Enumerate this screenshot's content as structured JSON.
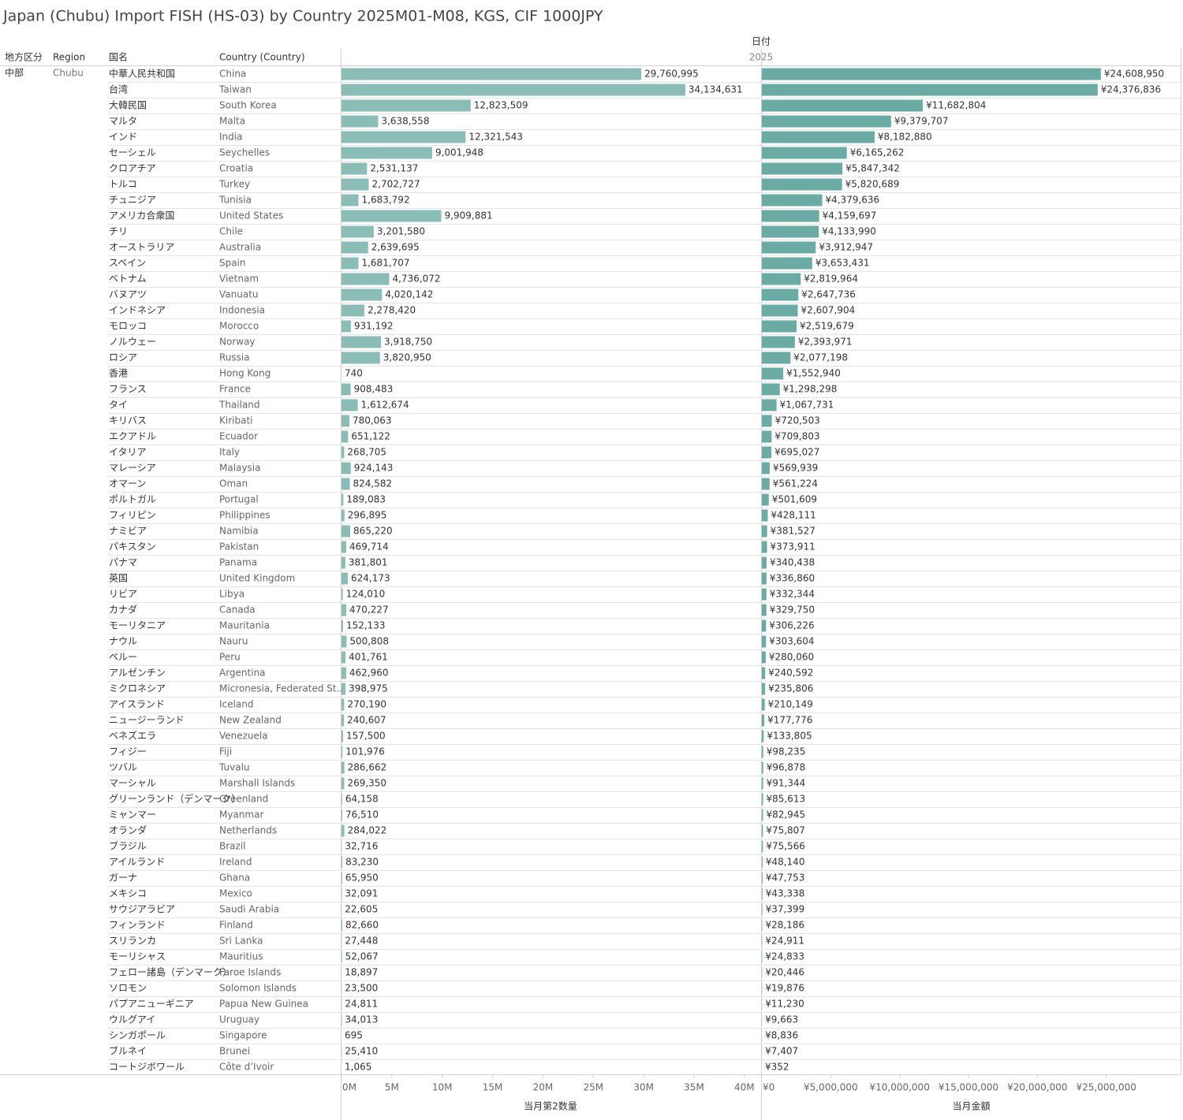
{
  "chart_data": {
    "type": "bar",
    "title": "Japan (Chubu) Import FISH (HS-03) by Country 2025M01-M08, KGS, CIF 1000JPY",
    "headers": {
      "area": "地方区分",
      "region": "Region",
      "name_jp": "国名",
      "country": "Country (Country)",
      "date": "日付",
      "year": "2025"
    },
    "area": "中部",
    "region": "Chubu",
    "categories": [
      "中華人民共和国",
      "台湾",
      "大韓民国",
      "マルタ",
      "インド",
      "セーシェル",
      "クロアチア",
      "トルコ",
      "チュニジア",
      "アメリカ合衆国",
      "チリ",
      "オーストラリア",
      "スペイン",
      "ベトナム",
      "バヌアツ",
      "インドネシア",
      "モロッコ",
      "ノルウェー",
      "ロシア",
      "香港",
      "フランス",
      "タイ",
      "キリバス",
      "エクアドル",
      "イタリア",
      "マレーシア",
      "オマーン",
      "ポルトガル",
      "フィリピン",
      "ナミビア",
      "パキスタン",
      "パナマ",
      "英国",
      "リビア",
      "カナダ",
      "モーリタニア",
      "ナウル",
      "ペルー",
      "アルゼンチン",
      "ミクロネシア",
      "アイスランド",
      "ニュージーランド",
      "ベネズエラ",
      "フィジー",
      "ツバル",
      "マーシャル",
      "グリーンランド（デンマーク）",
      "ミャンマー",
      "オランダ",
      "ブラジル",
      "アイルランド",
      "ガーナ",
      "メキシコ",
      "サウジアラビア",
      "フィンランド",
      "スリランカ",
      "モーリシャス",
      "フェロー諸島（デンマーク）",
      "ソロモン",
      "パプアニューギニア",
      "ウルグアイ",
      "シンガポール",
      "ブルネイ",
      "コートジボワール"
    ],
    "countries": [
      "China",
      "Taiwan",
      "South Korea",
      "Malta",
      "India",
      "Seychelles",
      "Croatia",
      "Turkey",
      "Tunisia",
      "United States",
      "Chile",
      "Australia",
      "Spain",
      "Vietnam",
      "Vanuatu",
      "Indonesia",
      "Morocco",
      "Norway",
      "Russia",
      "Hong Kong",
      "France",
      "Thailand",
      "Kiribati",
      "Ecuador",
      "Italy",
      "Malaysia",
      "Oman",
      "Portugal",
      "Philippines",
      "Namibia",
      "Pakistan",
      "Panama",
      "United Kingdom",
      "Libya",
      "Canada",
      "Mauritania",
      "Nauru",
      "Peru",
      "Argentina",
      "Micronesia, Federated St..",
      "Iceland",
      "New Zealand",
      "Venezuela",
      "Fiji",
      "Tuvalu",
      "Marshall Islands",
      "Greenland",
      "Myanmar",
      "Netherlands",
      "Brazil",
      "Ireland",
      "Ghana",
      "Mexico",
      "Saudi Arabia",
      "Finland",
      "Sri Lanka",
      "Mauritius",
      "Faroe Islands",
      "Solomon Islands",
      "Papua New Guinea",
      "Uruguay",
      "Singapore",
      "Brunei",
      "Côte d’Ivoir"
    ],
    "panels": [
      {
        "title": "当月第2数量",
        "color": "#89bdb5",
        "values": [
          29760995,
          34134631,
          12823509,
          3638558,
          12321543,
          9001948,
          2531137,
          2702727,
          1683792,
          9909881,
          3201580,
          2639695,
          1681707,
          4736072,
          4020142,
          2278420,
          931192,
          3918750,
          3820950,
          740,
          908483,
          1612674,
          780063,
          651122,
          268705,
          924143,
          824582,
          189083,
          296895,
          865220,
          469714,
          381801,
          624173,
          124010,
          470227,
          152133,
          500808,
          401761,
          462960,
          398975,
          270190,
          240607,
          157500,
          101976,
          286662,
          269350,
          64158,
          76510,
          284022,
          32716,
          83230,
          65950,
          32091,
          22605,
          82660,
          27448,
          52067,
          18897,
          23500,
          24811,
          34013,
          695,
          25410,
          1065
        ],
        "value_labels": [
          "29,760,995",
          "34,134,631",
          "12,823,509",
          "3,638,558",
          "12,321,543",
          "9,001,948",
          "2,531,137",
          "2,702,727",
          "1,683,792",
          "9,909,881",
          "3,201,580",
          "2,639,695",
          "1,681,707",
          "4,736,072",
          "4,020,142",
          "2,278,420",
          "931,192",
          "3,918,750",
          "3,820,950",
          "740",
          "908,483",
          "1,612,674",
          "780,063",
          "651,122",
          "268,705",
          "924,143",
          "824,582",
          "189,083",
          "296,895",
          "865,220",
          "469,714",
          "381,801",
          "624,173",
          "124,010",
          "470,227",
          "152,133",
          "500,808",
          "401,761",
          "462,960",
          "398,975",
          "270,190",
          "240,607",
          "157,500",
          "101,976",
          "286,662",
          "269,350",
          "64,158",
          "76,510",
          "284,022",
          "32,716",
          "83,230",
          "65,950",
          "32,091",
          "22,605",
          "82,660",
          "27,448",
          "52,067",
          "18,897",
          "23,500",
          "24,811",
          "34,013",
          "695",
          "25,410",
          "1,065"
        ],
        "xlim": [
          0,
          41500000
        ],
        "xticks": [
          {
            "value": 0,
            "label": "0M"
          },
          {
            "value": 5000000,
            "label": "5M"
          },
          {
            "value": 10000000,
            "label": "10M"
          },
          {
            "value": 15000000,
            "label": "15M"
          },
          {
            "value": 20000000,
            "label": "20M"
          },
          {
            "value": 25000000,
            "label": "25M"
          },
          {
            "value": 30000000,
            "label": "30M"
          },
          {
            "value": 35000000,
            "label": "35M"
          },
          {
            "value": 40000000,
            "label": "40M"
          }
        ]
      },
      {
        "title": "当月金額",
        "color": "#6aaba3",
        "values": [
          24608950,
          24376836,
          11682804,
          9379707,
          8182880,
          6165262,
          5847342,
          5820689,
          4379636,
          4159697,
          4133990,
          3912947,
          3653431,
          2819964,
          2647736,
          2607904,
          2519679,
          2393971,
          2077198,
          1552940,
          1298298,
          1067731,
          720503,
          709803,
          695027,
          569939,
          561224,
          501609,
          428111,
          381527,
          373911,
          340438,
          336860,
          332344,
          329750,
          306226,
          303604,
          280060,
          240592,
          235806,
          210149,
          177776,
          133805,
          98235,
          96878,
          91344,
          85613,
          82945,
          75807,
          75566,
          48140,
          47753,
          43338,
          37399,
          28186,
          24911,
          24833,
          20446,
          19876,
          11230,
          9663,
          8836,
          7407,
          352
        ],
        "value_labels": [
          "¥24,608,950",
          "¥24,376,836",
          "¥11,682,804",
          "¥9,379,707",
          "¥8,182,880",
          "¥6,165,262",
          "¥5,847,342",
          "¥5,820,689",
          "¥4,379,636",
          "¥4,159,697",
          "¥4,133,990",
          "¥3,912,947",
          "¥3,653,431",
          "¥2,819,964",
          "¥2,647,736",
          "¥2,607,904",
          "¥2,519,679",
          "¥2,393,971",
          "¥2,077,198",
          "¥1,552,940",
          "¥1,298,298",
          "¥1,067,731",
          "¥720,503",
          "¥709,803",
          "¥695,027",
          "¥569,939",
          "¥561,224",
          "¥501,609",
          "¥428,111",
          "¥381,527",
          "¥373,911",
          "¥340,438",
          "¥336,860",
          "¥332,344",
          "¥329,750",
          "¥306,226",
          "¥303,604",
          "¥280,060",
          "¥240,592",
          "¥235,806",
          "¥210,149",
          "¥177,776",
          "¥133,805",
          "¥98,235",
          "¥96,878",
          "¥91,344",
          "¥85,613",
          "¥82,945",
          "¥75,807",
          "¥75,566",
          "¥48,140",
          "¥47,753",
          "¥43,338",
          "¥37,399",
          "¥28,186",
          "¥24,911",
          "¥24,833",
          "¥20,446",
          "¥19,876",
          "¥11,230",
          "¥9,663",
          "¥8,836",
          "¥7,407",
          "¥352"
        ],
        "xlim": [
          0,
          30400000
        ],
        "xticks": [
          {
            "value": 0,
            "label": "¥0"
          },
          {
            "value": 5000000,
            "label": "¥5,000,000"
          },
          {
            "value": 10000000,
            "label": "¥10,000,000"
          },
          {
            "value": 15000000,
            "label": "¥15,000,000"
          },
          {
            "value": 20000000,
            "label": "¥20,000,000"
          },
          {
            "value": 25000000,
            "label": "¥25,000,000"
          }
        ]
      }
    ]
  }
}
